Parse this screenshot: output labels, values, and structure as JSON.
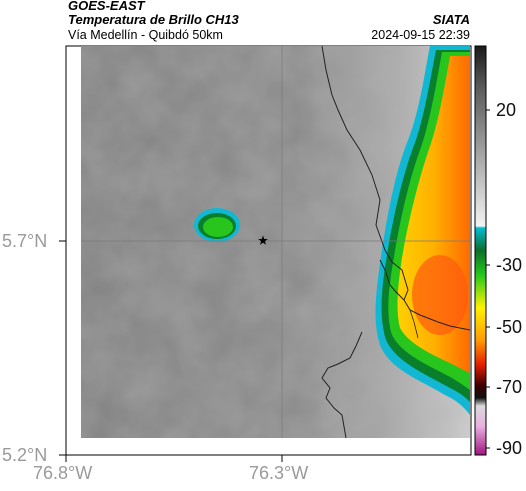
{
  "header": {
    "satellite": "GOES-EAST",
    "product": "Temperatura de Brillo CH13",
    "subtitle": "Vía Medellín - Quibdó 50km",
    "org": "SIATA",
    "timestamp": "2024-09-15 22:39"
  },
  "axes": {
    "lon_ticks": [
      "76.8°W",
      "76.3°W"
    ],
    "lat_ticks": [
      "5.7°N",
      "5.2°N"
    ]
  },
  "colorbar": {
    "ticks": [
      "20",
      "-30",
      "-50",
      "-70",
      "-90"
    ],
    "colors": [
      "#1a1a1a",
      "#9a9a9a",
      "#f0f0f0",
      "#00bcd4",
      "#0a7d2a",
      "#21c51a",
      "#ffe400",
      "#ff8c00",
      "#e01e00",
      "#3b0000",
      "#d0d0d0",
      "#c01e8c"
    ]
  },
  "markers": {
    "site_icon": "star-icon"
  }
}
